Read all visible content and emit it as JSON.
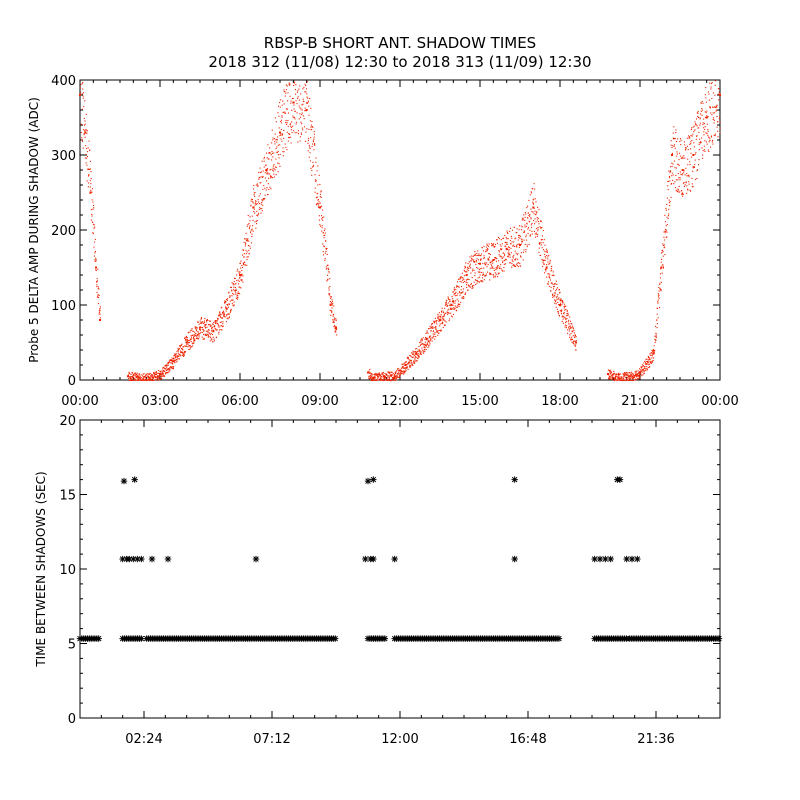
{
  "title": {
    "line1": "RBSP-B SHORT ANT. SHADOW TIMES",
    "line2": "2018 312 (11/08) 12:30 to 2018 313 (11/09) 12:30"
  },
  "colors": {
    "top_points": "#ee2200",
    "bottom_points": "#000000",
    "axes": "#000000"
  },
  "chart_data": [
    {
      "type": "scatter",
      "ylabel": "Probe 5 DELTA AMP DURING SHADOW (ADC)",
      "xlim": [
        0,
        24
      ],
      "ylim": [
        0,
        400
      ],
      "xtick_values": [
        0,
        3,
        6,
        9,
        12,
        15,
        18,
        21,
        24
      ],
      "xtick_labels": [
        "00:00",
        "03:00",
        "06:00",
        "09:00",
        "12:00",
        "15:00",
        "18:00",
        "21:00",
        "00:00"
      ],
      "ytick_values": [
        0,
        100,
        200,
        300,
        400
      ],
      "ytick_labels": [
        "0",
        "100",
        "200",
        "300",
        "400"
      ],
      "series": [
        {
          "color": "#ee2200",
          "x": [
            0.0,
            0.2,
            0.4,
            0.6,
            0.75,
            1.8,
            2.2,
            2.6,
            3.0,
            3.5,
            4.0,
            4.5,
            5.0,
            5.5,
            6.0,
            6.5,
            7.0,
            7.5,
            8.0,
            8.5,
            9.0,
            9.4,
            9.6,
            10.8,
            11.0,
            11.4,
            11.8,
            12.2,
            12.6,
            13.0,
            13.5,
            14.0,
            14.5,
            15.0,
            15.5,
            16.0,
            16.5,
            17.0,
            17.5,
            18.0,
            18.6,
            19.8,
            20.2,
            20.6,
            21.0,
            21.5,
            21.8,
            22.2,
            22.6,
            23.0,
            23.5,
            24.0
          ],
          "y": [
            380,
            330,
            250,
            150,
            80,
            5,
            3,
            3,
            8,
            25,
            50,
            70,
            65,
            95,
            140,
            230,
            280,
            330,
            370,
            360,
            230,
            100,
            70,
            10,
            3,
            5,
            5,
            20,
            35,
            55,
            80,
            105,
            140,
            155,
            160,
            175,
            180,
            230,
            150,
            100,
            50,
            8,
            3,
            5,
            10,
            35,
            150,
            300,
            280,
            300,
            350,
            380
          ]
        }
      ]
    },
    {
      "type": "scatter",
      "ylabel": "TIME BETWEEN SHADOWS (SEC)",
      "xlim": [
        0,
        24
      ],
      "ylim": [
        0,
        20
      ],
      "xtick_values": [
        2.4,
        7.2,
        12.0,
        16.8,
        21.6
      ],
      "xtick_labels": [
        "02:24",
        "07:12",
        "12:00",
        "16:48",
        "21:36"
      ],
      "ytick_values": [
        0,
        5,
        10,
        15,
        20
      ],
      "ytick_labels": [
        "0",
        "5",
        "10",
        "15",
        "20"
      ],
      "series": [
        {
          "color": "#000000",
          "marker": "*",
          "baseline_y": 5.33,
          "baseline_ranges": [
            [
              0.0,
              0.75
            ],
            [
              1.6,
              2.35
            ],
            [
              2.5,
              9.6
            ],
            [
              10.8,
              11.5
            ],
            [
              11.8,
              18.0
            ],
            [
              19.3,
              20.5
            ],
            [
              20.6,
              24.0
            ]
          ],
          "x": [
            1.6,
            1.75,
            1.85,
            2.0,
            2.15,
            2.3,
            2.7,
            3.3,
            6.6,
            10.7,
            10.9,
            11.0,
            11.8,
            16.3,
            19.3,
            19.5,
            19.7,
            19.9,
            20.5,
            20.7,
            20.9,
            1.65,
            2.05,
            10.8,
            11.0,
            16.3,
            20.15,
            20.25
          ],
          "y": [
            10.67,
            10.67,
            10.67,
            10.67,
            10.67,
            10.67,
            10.67,
            10.67,
            10.67,
            10.67,
            10.67,
            10.67,
            10.67,
            10.67,
            10.67,
            10.67,
            10.67,
            10.67,
            10.67,
            10.67,
            10.67,
            15.9,
            16.0,
            15.9,
            16.0,
            16.0,
            16.0,
            16.0
          ]
        }
      ]
    }
  ]
}
